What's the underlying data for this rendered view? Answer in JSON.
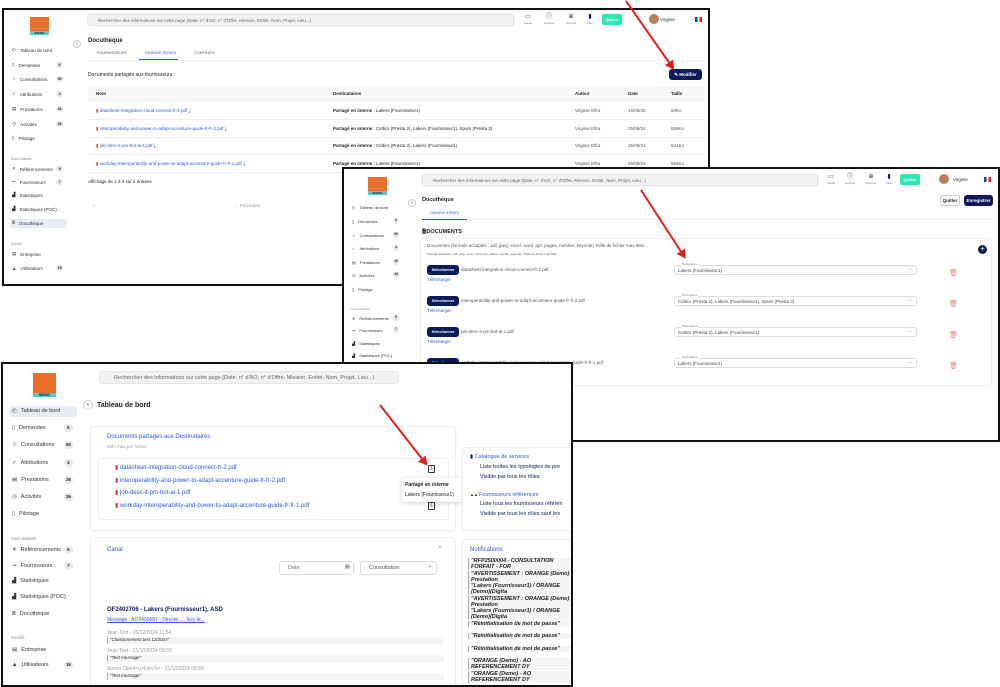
{
  "sidebar": {
    "main": [
      {
        "label": "Tableau de bord",
        "icon": "dashboard-icon"
      },
      {
        "label": "Demandes",
        "badge": "6",
        "icon": "requests-icon"
      },
      {
        "label": "Consultations",
        "badge": "50",
        "icon": "star-icon"
      },
      {
        "label": "Attributions",
        "badge": "3",
        "icon": "attributions-icon"
      },
      {
        "label": "Prestations",
        "badge": "26",
        "icon": "prestations-icon"
      },
      {
        "label": "Activités",
        "badge": "26",
        "icon": "clock-icon"
      },
      {
        "label": "Pilotage",
        "icon": "document-icon"
      }
    ],
    "section_subcontractors": "Sous-traitants",
    "sub": [
      {
        "label": "Référencements",
        "badge": "5",
        "icon": "network-icon"
      },
      {
        "label": "Fournisseurs",
        "badge": "7",
        "icon": "suppliers-icon"
      },
      {
        "label": "Statistiques",
        "icon": "stats-icon"
      },
      {
        "label": "Statistiques (POC)",
        "icon": "stats-icon"
      },
      {
        "label": "Docuthèque",
        "icon": "library-icon"
      }
    ],
    "section_company": "Société",
    "company": [
      {
        "label": "Entreprise",
        "icon": "building-icon"
      },
      {
        "label": "Utilisateurs",
        "badge": "15",
        "icon": "users-icon"
      }
    ]
  },
  "logo_text": "IDEMO",
  "header": {
    "search_placeholder": "Rechercher des informations sur cette page (Date, n° d'AO, n° d'Offre, Mission, Entité, Nom, Projet, Lieu...)",
    "icons": [
      {
        "label": "Canal",
        "icon": "chat-icon"
      },
      {
        "label": "Lexique",
        "icon": "info-icon"
      },
      {
        "label": "Support",
        "icon": "support-icon"
      },
      {
        "label": "Piter",
        "icon": "bot-icon"
      }
    ],
    "quit": "Quitter",
    "user": "Virginie",
    "accent": "#2ee6b0"
  },
  "screen1": {
    "title": "Docuthèque",
    "tabs": [
      "FOURNISSEURS",
      "ORANGE (DEMO)",
      "CONTRATS"
    ],
    "section": "Documents partagés aux fournisseurs",
    "edit": "Modifier",
    "columns": [
      "Nom",
      "Destinataires",
      "Auteur",
      "Date",
      "Taille"
    ],
    "rows": [
      {
        "name": "datasheet-integration-cloud-connect-fr-2.pdf",
        "prefix": "Partagé en interne",
        "dest": " : Lakers (Fournisseur1)",
        "author": "Virginie Elfra",
        "date": "16/05/25",
        "size": "54Ko"
      },
      {
        "name": "interoperability-and-power-to-adapt-accenture-guide-fr-fr-2.pdf",
        "prefix": "Partagé en interne",
        "dest": " : Celtics (Presta 2), Lakers (Fournisseur1), Spurs (Presta 3)",
        "author": "Virginie Elfra",
        "date": "25/09/24",
        "size": "869Ko"
      },
      {
        "name": "job-desc-it-pm-bot-ai-1.pdf",
        "prefix": "Partagé en interne",
        "dest": " : Celtics (Presta 2), Lakers (Fournisseur1)",
        "author": "Virginie Elfra",
        "date": "25/09/24",
        "size": "641Ko"
      },
      {
        "name": "workday-interoperability-and-power-to-adapt-accenture-guide-fr-fr-1.pdf",
        "prefix": "Partagé en interne",
        "dest": " : Lakers (Fournisseur1)",
        "author": "Virginie Elfra",
        "date": "25/09/24",
        "size": "856Ko"
      }
    ],
    "footer": "Affichage de 1 à 4 sur 4 entrées",
    "prev": "← Précédent",
    "first": "‹"
  },
  "screen2": {
    "title": "Docuthèque",
    "tab": "ORANGE (DEMO)",
    "quit": "Quitter",
    "save": "Enregistrer",
    "section": "DOCUMENTS",
    "desc": "Documents (formats acceptés : pdf, jpeg, excel, word, ppt, pages, number, keynote) Taille de fichier max 5Mo",
    "desc_small": "Formats acceptés : pdf, jpeg, excel, word, ppt, pages, number, keynote - Taille de fichier max 5Mo",
    "select_label": "Sélectionner",
    "download_label": "Télécharger",
    "partners_label": "Partenaires",
    "rows": [
      {
        "file": "datasheet-integration-cloud-connect-fr-2.pdf",
        "partners": "Lakers (Fournisseur1)"
      },
      {
        "file": "interoperability-and-power-to-adapt-accenture-guide-fr-fr-2.pdf",
        "partners": "Celtics (Presta 2), Lakers (Fournisseur1), Spurs (Presta 3)"
      },
      {
        "file": "job-desc-it-pm-bot-ai-1.pdf",
        "partners": "Celtics (Presta 2), Lakers (Fournisseur1)"
      },
      {
        "file": "workday-interoperability-and-power-to-adapt-accenture-guide-fr-fr-1.pdf",
        "partners": "Lakers (Fournisseur1)"
      }
    ]
  },
  "screen3": {
    "title": "Tableau de bord",
    "docs_title": "Documents partagés aux Destinataires",
    "docs_sub": "5Mo max par fichier",
    "files": [
      "datasheet-integration-cloud-connect-fr-2.pdf",
      "interoperability-and-power-to-adapt-accenture-guide-fr-fr-2.pdf",
      "job-desc-it-pm-bot-ai-1.pdf",
      "workday-interoperability-and-power-to-adapt-accenture-guide-fr-fr-1.pdf"
    ],
    "tooltip_title": "Partagé en interne",
    "tooltip_value": "Lakers (Fournisseur1)",
    "catalog_title": "Catalogue de services",
    "catalog_l1": "Liste toutes les typologies de pre",
    "catalog_l2": "Visible par tous les rôles",
    "suppliers_title": "Fournisseurs référencés",
    "suppliers_l1": "Liste tous les fournisseurs référen",
    "suppliers_l2": "Visible par tous les rôles sauf les",
    "canal": "Canal",
    "date_placeholder": "Date",
    "consultation": "Consultation",
    "thread_title": "OF2402706 - Lakers (Fournisseur1), ASD",
    "thread_link": "Message : AO2400687 - Directe .... Issy le...",
    "messages": [
      {
        "meta": "Jean Test - 16/12/2024 11:54",
        "text": "\"Cloisonnement test 12/2024\""
      },
      {
        "meta": "Jean Test - 21/10/2024 09:59",
        "text": "\"Test message\""
      },
      {
        "meta": "Simon Client<u>Un</u> - 21/10/2024 09:59",
        "text": "\"Test message\""
      }
    ],
    "notifications_title": "Notifications",
    "notifications": [
      "\"RFP2500004 - CONSULTATION FORFAIT - FOR",
      "\"AVERTISSEMENT : ORANGE (Demo) - Prestation",
      "\"Lakers (Fournisseur1) / ORANGE (Demo)(Digita",
      "\"AVERTISSEMENT : ORANGE (Demo) - Prestation",
      "\"Lakers (Fournisseur1) / ORANGE (Demo)(Digita",
      "\"Réinitialisation de mot de passe\"",
      "\"Réinitialisation de mot de passe\"",
      "\"Réinitialisation de mot de passe\"",
      "\"ORANGE (Demo) - AO REFERENCEMENT DY",
      "\"ORANGE (Demo) - AO REFERENCEMENT DY"
    ]
  }
}
